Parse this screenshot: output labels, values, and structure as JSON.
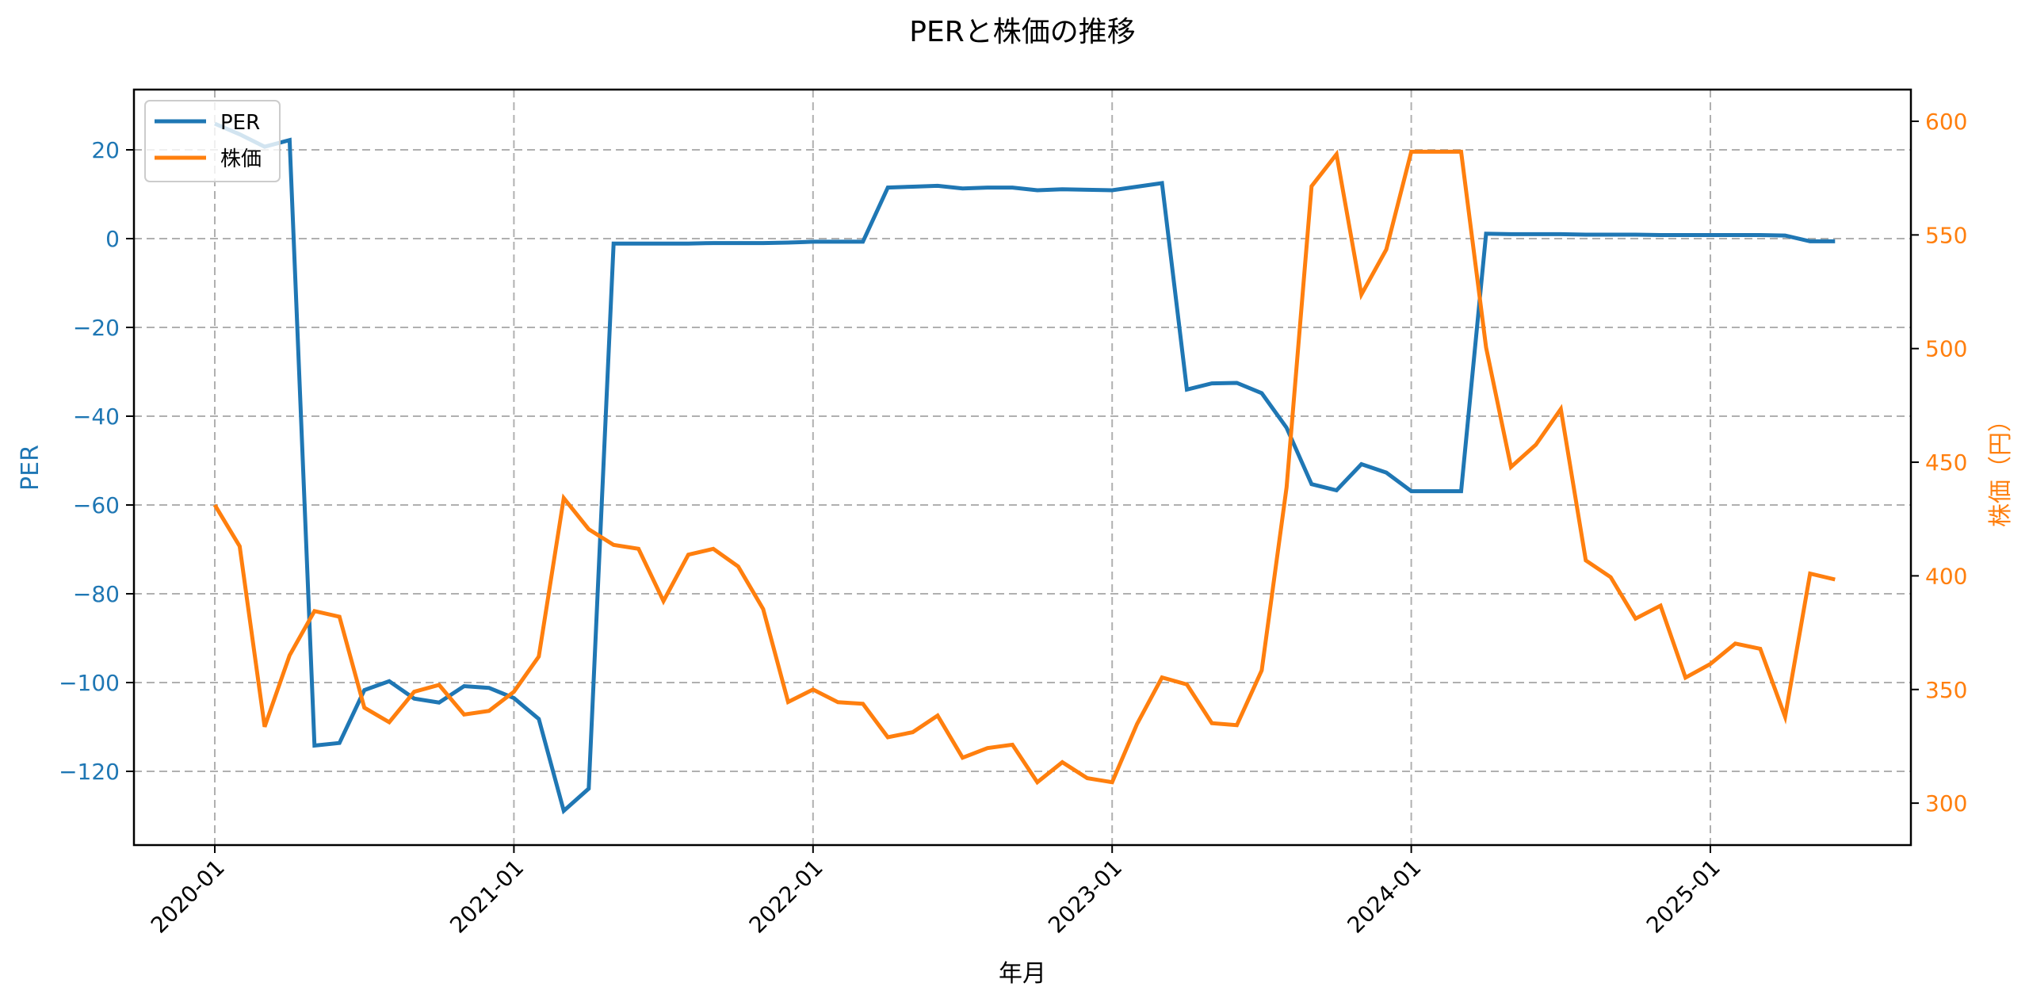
{
  "chart_data": {
    "type": "line",
    "title": "PERと株価の推移",
    "xlabel": "年月",
    "ylabel": "PER",
    "ylabel_right": "株価（円）",
    "x_tick_labels": [
      "2020-01",
      "2021-01",
      "2022-01",
      "2023-01",
      "2024-01",
      "2025-01"
    ],
    "y_ticks_left": [
      20,
      0,
      -20,
      -40,
      -60,
      -80,
      -100,
      -120
    ],
    "y_ticks_right": [
      600,
      550,
      500,
      450,
      400,
      350,
      300
    ],
    "ylim_left": [
      -136.6,
      33.6
    ],
    "ylim_right": [
      281.5,
      614
    ],
    "grid": true,
    "grid_style": "dashed",
    "legend_position": "upper left",
    "x": [
      "2020-01",
      "2020-02",
      "2020-03",
      "2020-04",
      "2020-05",
      "2020-06",
      "2020-07",
      "2020-08",
      "2020-09",
      "2020-10",
      "2020-11",
      "2020-12",
      "2021-01",
      "2021-02",
      "2021-03",
      "2021-04",
      "2021-05",
      "2021-06",
      "2021-07",
      "2021-08",
      "2021-09",
      "2021-10",
      "2021-11",
      "2021-12",
      "2022-01",
      "2022-02",
      "2022-03",
      "2022-04",
      "2022-05",
      "2022-06",
      "2022-07",
      "2022-08",
      "2022-09",
      "2022-10",
      "2022-11",
      "2022-12",
      "2023-01",
      "2023-02",
      "2023-03",
      "2023-04",
      "2023-05",
      "2023-06",
      "2023-07",
      "2023-08",
      "2023-09",
      "2023-10",
      "2023-11",
      "2023-12",
      "2024-01",
      "2024-02",
      "2024-03",
      "2024-04",
      "2024-05",
      "2024-06",
      "2024-07",
      "2024-08",
      "2024-09",
      "2024-10",
      "2024-11",
      "2024-12",
      "2025-01",
      "2025-02",
      "2025-03",
      "2025-04",
      "2025-05",
      "2025-06"
    ],
    "series": [
      {
        "name": "PER",
        "axis": "left",
        "color": "#1f77b4",
        "values": [
          25.9,
          23.5,
          20.7,
          22.2,
          -114.2,
          -113.6,
          -101.7,
          -99.7,
          -103.6,
          -104.5,
          -100.8,
          -101.2,
          -103.5,
          -108.2,
          -128.9,
          -123.9,
          -1.1,
          -1.1,
          -1.1,
          -1.1,
          -1.0,
          -1.0,
          -1.0,
          -0.9,
          -0.7,
          -0.7,
          -0.7,
          11.5,
          11.7,
          11.9,
          11.3,
          11.5,
          11.5,
          10.9,
          11.1,
          11.0,
          10.9,
          11.7,
          12.5,
          -34.0,
          -32.6,
          -32.5,
          -34.8,
          -42.6,
          -55.3,
          -56.7,
          -50.8,
          -52.7,
          -56.9,
          -56.9,
          -56.9,
          1.1,
          1.0,
          1.0,
          1.0,
          0.9,
          0.9,
          0.9,
          0.8,
          0.8,
          0.8,
          0.8,
          0.8,
          0.7,
          -0.6,
          -0.6
        ]
      },
      {
        "name": "株価",
        "axis": "right",
        "color": "#ff7f0e",
        "values": [
          431.2,
          413.0,
          333.6,
          365.0,
          384.5,
          382.0,
          342.0,
          335.6,
          349.0,
          352.0,
          339.0,
          340.6,
          349.0,
          364.5,
          434.2,
          420.5,
          413.6,
          411.9,
          388.9,
          409.3,
          411.9,
          404.1,
          385.4,
          344.5,
          350.0,
          344.4,
          343.7,
          329.0,
          331.2,
          338.5,
          320.0,
          324.2,
          325.7,
          309.2,
          318.0,
          311.0,
          309.2,
          334.8,
          355.3,
          352.2,
          335.2,
          334.3,
          358.4,
          439.0,
          571.4,
          585.5,
          523.8,
          543.6,
          586.6,
          586.6,
          586.6,
          500.5,
          447.9,
          457.7,
          473.4,
          406.8,
          399.4,
          381.2,
          386.9,
          355.2,
          361.2,
          370.2,
          367.9,
          338.0,
          401.0,
          398.4
        ]
      }
    ]
  },
  "legend": {
    "items": [
      {
        "label": "PER",
        "color": "#1f77b4"
      },
      {
        "label": "株価",
        "color": "#ff7f0e"
      }
    ]
  },
  "colors": {
    "per": "#1f77b4",
    "price": "#ff7f0e",
    "grid": "#b0b0b0",
    "axis": "#000000"
  }
}
